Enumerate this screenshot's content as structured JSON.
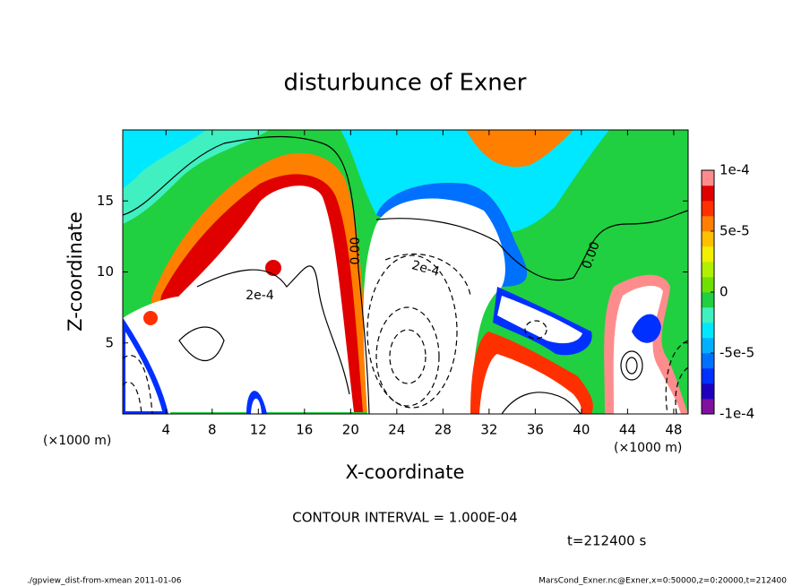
{
  "chart_data": {
    "type": "contour",
    "title": "disturbunce of Exner",
    "x_label": "X-coordinate",
    "y_label": "Z-coordinate",
    "x_unit_label": "(×1000 m)",
    "xlim": [
      0.25,
      49.25
    ],
    "ylim": [
      0,
      20
    ],
    "xticks": [
      4,
      8,
      12,
      16,
      20,
      24,
      28,
      32,
      36,
      40,
      44,
      48
    ],
    "yticks": [
      5,
      10,
      15
    ],
    "colorbar": {
      "lim": [
        -0.0001,
        0.0001
      ],
      "ticks": [
        {
          "value": 0.0001,
          "label": "1e-4"
        },
        {
          "value": 5e-05,
          "label": "5e-5"
        },
        0,
        {
          "value": -5e-05,
          "label": "-5e-5"
        },
        {
          "value": -0.0001,
          "label": "-1e-4"
        }
      ],
      "colors": [
        "#80109f",
        "#2000c0",
        "#0030ff",
        "#0070ff",
        "#00b0ff",
        "#00e8ff",
        "#40f0c0",
        "#20d040",
        "#70e000",
        "#b0f000",
        "#f0f000",
        "#ffc000",
        "#ff8000",
        "#ff3000",
        "#e00000",
        "#ff8c8c"
      ]
    },
    "contour_labels": [
      "0.00",
      "0.00",
      "2e-4",
      "2e-4"
    ],
    "contour_interval_text": "CONTOUR INTERVAL = 1.000E-04",
    "time_text": "t=212400 s"
  },
  "footer": {
    "left": "./gpview_dist-from-xmean  2011-01-06",
    "right": "MarsCond_Exner.nc@Exner,x=0:50000,z=0:20000,t=212400"
  }
}
